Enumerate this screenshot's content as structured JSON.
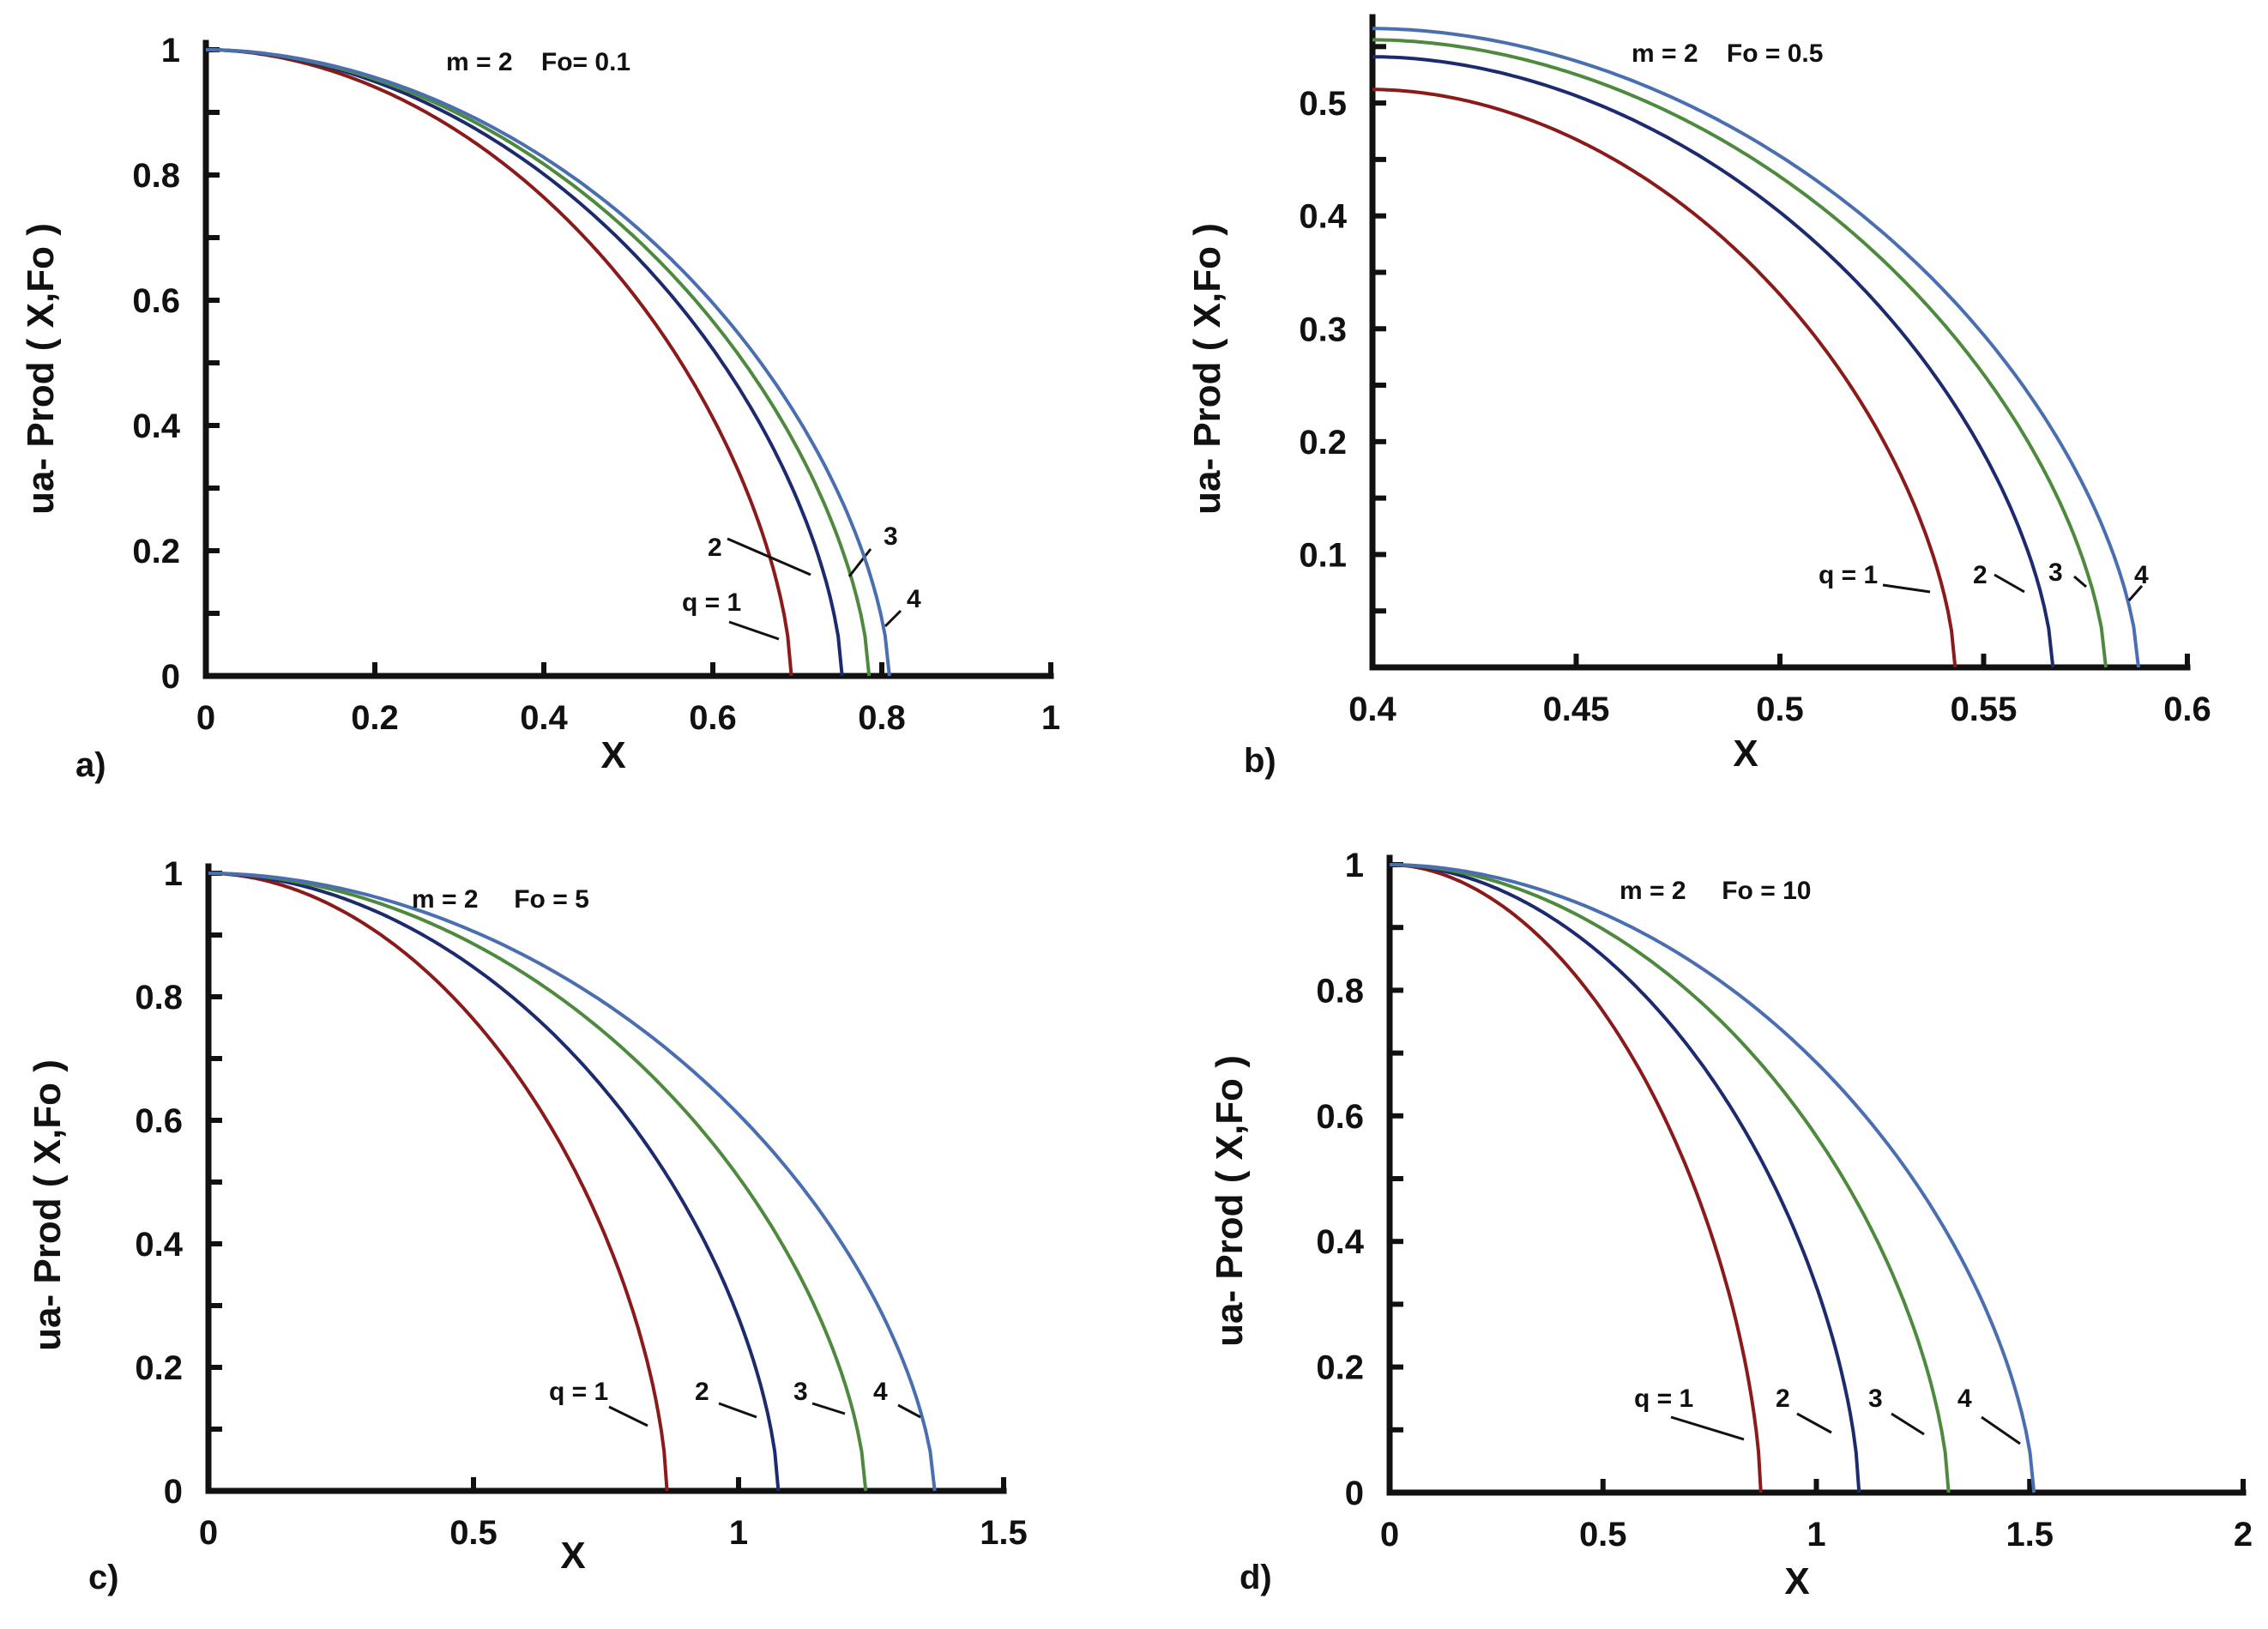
{
  "chart_data": [
    {
      "type": "line",
      "panel_label": "a)",
      "title": "m = 2    Fo= 0.1",
      "xlabel": "X",
      "ylabel": "ua- Prod ( X,Fo )",
      "xlim": [
        0,
        1
      ],
      "ylim": [
        0,
        1
      ],
      "xticks": [
        0,
        0.2,
        0.4,
        0.6,
        0.8,
        1
      ],
      "xtick_labels": [
        "0",
        "0.2",
        "0.4",
        "0.6",
        "0.8",
        "1"
      ],
      "yticks": [
        0,
        0.2,
        0.4,
        0.6,
        0.8,
        1
      ],
      "ytick_labels": [
        "0",
        "0.2",
        "0.4",
        "0.6",
        "0.8",
        "1"
      ],
      "series": [
        {
          "name": "q = 1",
          "label": "q = 1",
          "color": "#8b1a1a",
          "x0": 0,
          "y0": 1,
          "x_end": 0.693
        },
        {
          "name": "2",
          "label": "2",
          "color": "#1c2a6e",
          "x0": 0,
          "y0": 1,
          "x_end": 0.753
        },
        {
          "name": "3",
          "label": "3",
          "color": "#4e8a3e",
          "x0": 0,
          "y0": 1,
          "x_end": 0.785
        },
        {
          "name": "4",
          "label": "4",
          "color": "#4a6fb0",
          "x0": 0,
          "y0": 1,
          "x_end": 0.809
        }
      ]
    },
    {
      "type": "line",
      "panel_label": "b)",
      "title": "m = 2    Fo = 0.5",
      "xlabel": "X",
      "ylabel": "ua- Prod ( X,Fo )",
      "xlim": [
        0.4,
        0.6
      ],
      "ylim": [
        0,
        0.57
      ],
      "xticks": [
        0.4,
        0.45,
        0.5,
        0.55,
        0.6
      ],
      "xtick_labels": [
        "0.4",
        "0.45",
        "0.5",
        "0.55",
        "0.6"
      ],
      "yticks": [
        0.1,
        0.2,
        0.3,
        0.4,
        0.5
      ],
      "ytick_labels": [
        "0.1",
        "0.2",
        "0.3",
        "0.4",
        "0.5"
      ],
      "series": [
        {
          "name": "q = 1",
          "label": "q = 1",
          "color": "#8b1a1a",
          "x0": 0.4,
          "y0": 0.512,
          "x_end": 0.543
        },
        {
          "name": "2",
          "label": "2",
          "color": "#1c2a6e",
          "x0": 0.4,
          "y0": 0.541,
          "x_end": 0.567
        },
        {
          "name": "3",
          "label": "3",
          "color": "#4e8a3e",
          "x0": 0.4,
          "y0": 0.556,
          "x_end": 0.58
        },
        {
          "name": "4",
          "label": "4",
          "color": "#4a6fb0",
          "x0": 0.4,
          "y0": 0.566,
          "x_end": 0.588
        }
      ]
    },
    {
      "type": "line",
      "panel_label": "c)",
      "title": "m = 2     Fo = 5",
      "xlabel": "X",
      "ylabel": "ua- Prod ( X,Fo )",
      "xlim": [
        0,
        1.5
      ],
      "ylim": [
        0,
        1
      ],
      "xticks": [
        0,
        0.5,
        1,
        1.5
      ],
      "xtick_labels": [
        "0",
        "0.5",
        "1",
        "1.5"
      ],
      "yticks": [
        0,
        0.2,
        0.4,
        0.6,
        0.8,
        1
      ],
      "ytick_labels": [
        "0",
        "0.2",
        "0.4",
        "0.6",
        "0.8",
        "1"
      ],
      "series": [
        {
          "name": "q = 1",
          "label": "q = 1",
          "color": "#8b1a1a",
          "x0": 0,
          "y0": 1,
          "x_end": 0.865
        },
        {
          "name": "2",
          "label": "2",
          "color": "#1c2a6e",
          "x0": 0,
          "y0": 1,
          "x_end": 1.075
        },
        {
          "name": "3",
          "label": "3",
          "color": "#4e8a3e",
          "x0": 0,
          "y0": 1,
          "x_end": 1.24
        },
        {
          "name": "4",
          "label": "4",
          "color": "#4a6fb0",
          "x0": 0,
          "y0": 1,
          "x_end": 1.37
        }
      ]
    },
    {
      "type": "line",
      "panel_label": "d)",
      "title": "m = 2     Fo = 10",
      "xlabel": "X",
      "ylabel": "ua- Prod ( X,Fo )",
      "xlim": [
        0,
        2
      ],
      "ylim": [
        0,
        1
      ],
      "xticks": [
        0,
        0.5,
        1,
        1.5,
        2
      ],
      "xtick_labels": [
        "0",
        "0.5",
        "1",
        "1.5",
        "2"
      ],
      "yticks": [
        0,
        0.2,
        0.4,
        0.6,
        0.8,
        1
      ],
      "ytick_labels": [
        "0",
        "0.2",
        "0.4",
        "0.6",
        "0.8",
        "1"
      ],
      "series": [
        {
          "name": "q = 1",
          "label": "q = 1",
          "color": "#8b1a1a",
          "x0": 0,
          "y0": 1,
          "x_end": 0.87
        },
        {
          "name": "2",
          "label": "2",
          "color": "#1c2a6e",
          "x0": 0,
          "y0": 1,
          "x_end": 1.1
        },
        {
          "name": "3",
          "label": "3",
          "color": "#4e8a3e",
          "x0": 0,
          "y0": 1,
          "x_end": 1.31
        },
        {
          "name": "4",
          "label": "4",
          "color": "#4a6fb0",
          "x0": 0,
          "y0": 1,
          "x_end": 1.51
        }
      ]
    }
  ]
}
